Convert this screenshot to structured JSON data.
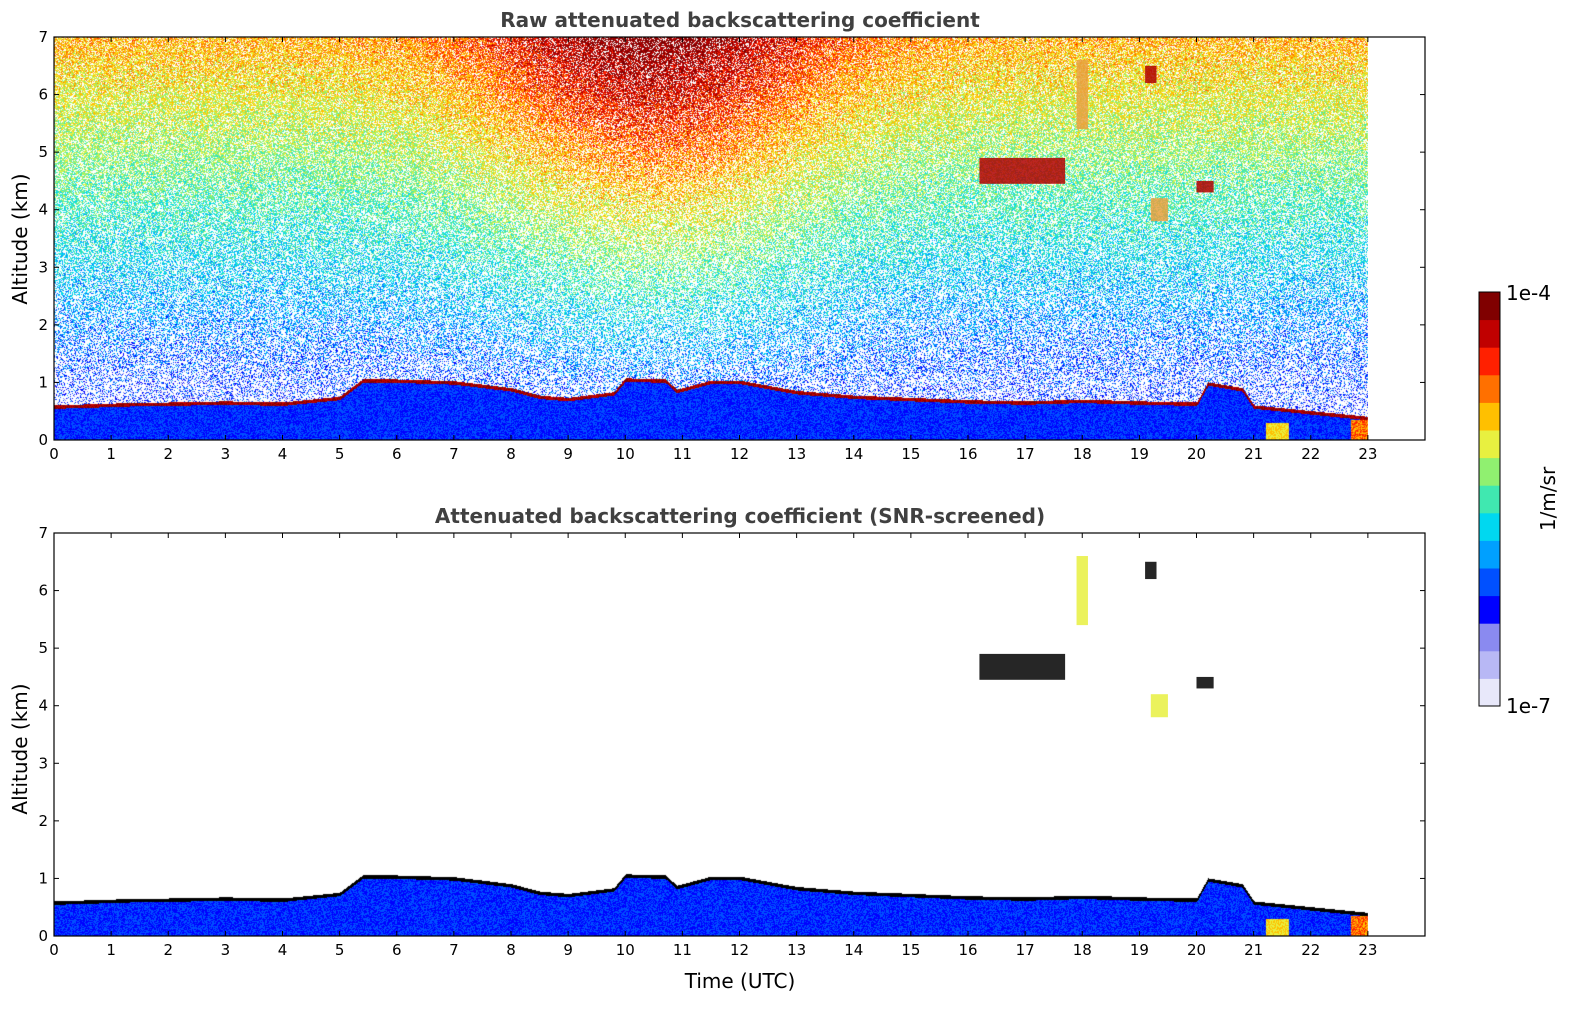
{
  "chart_data": [
    {
      "type": "heatmap",
      "title": "Raw attenuated backscattering coefficient",
      "xlabel": "",
      "ylabel": "Altitude (km)",
      "xlim": [
        0,
        24
      ],
      "ylim": [
        0,
        7
      ],
      "x_ticks": [
        "0",
        "1",
        "2",
        "3",
        "4",
        "5",
        "6",
        "7",
        "8",
        "9",
        "10",
        "11",
        "12",
        "13",
        "14",
        "15",
        "16",
        "17",
        "18",
        "19",
        "20",
        "21",
        "22",
        "23"
      ],
      "y_ticks": [
        "0",
        "1",
        "2",
        "3",
        "4",
        "5",
        "6",
        "7"
      ],
      "data_end_hour": 23,
      "noise": "random speckle increasing with altitude, strongest (orange) near 10-11 UTC above 5 km",
      "boundary_layer_top_km": [
        [
          0,
          0.55
        ],
        [
          1,
          0.58
        ],
        [
          1.6,
          0.6
        ],
        [
          2,
          0.6
        ],
        [
          3,
          0.62
        ],
        [
          4,
          0.6
        ],
        [
          5,
          0.7
        ],
        [
          5.4,
          1.0
        ],
        [
          6,
          1.0
        ],
        [
          7,
          0.97
        ],
        [
          8,
          0.85
        ],
        [
          8.5,
          0.72
        ],
        [
          9,
          0.68
        ],
        [
          9.8,
          0.78
        ],
        [
          10,
          1.02
        ],
        [
          10.7,
          1.0
        ],
        [
          10.9,
          0.82
        ],
        [
          11.5,
          0.98
        ],
        [
          12,
          0.98
        ],
        [
          13,
          0.8
        ],
        [
          14,
          0.72
        ],
        [
          15,
          0.68
        ],
        [
          16,
          0.64
        ],
        [
          17,
          0.62
        ],
        [
          18,
          0.65
        ],
        [
          19,
          0.62
        ],
        [
          20,
          0.6
        ],
        [
          20.2,
          0.95
        ],
        [
          20.8,
          0.85
        ],
        [
          21,
          0.55
        ],
        [
          22,
          0.45
        ],
        [
          23,
          0.35
        ]
      ],
      "cloud_features": [
        {
          "x_range": [
            16.2,
            17.7
          ],
          "alt_km": [
            4.45,
            4.9
          ],
          "intensity": "high"
        },
        {
          "x_range": [
            19.1,
            19.3
          ],
          "alt_km": [
            6.2,
            6.5
          ],
          "intensity": "high"
        },
        {
          "x_range": [
            17.9,
            18.1
          ],
          "alt_km": [
            5.4,
            6.6
          ],
          "intensity": "medium"
        },
        {
          "x_range": [
            20.0,
            20.3
          ],
          "alt_km": [
            4.3,
            4.5
          ],
          "intensity": "high"
        },
        {
          "x_range": [
            19.2,
            19.5
          ],
          "alt_km": [
            3.8,
            4.2
          ],
          "intensity": "medium"
        }
      ]
    },
    {
      "type": "heatmap",
      "title": "Attenuated backscattering coefficient (SNR-screened)",
      "xlabel": "Time (UTC)",
      "ylabel": "Altitude (km)",
      "xlim": [
        0,
        24
      ],
      "ylim": [
        0,
        7
      ],
      "x_ticks": [
        "0",
        "1",
        "2",
        "3",
        "4",
        "5",
        "6",
        "7",
        "8",
        "9",
        "10",
        "11",
        "12",
        "13",
        "14",
        "15",
        "16",
        "17",
        "18",
        "19",
        "20",
        "21",
        "22",
        "23"
      ],
      "y_ticks": [
        "0",
        "1",
        "2",
        "3",
        "4",
        "5",
        "6",
        "7"
      ],
      "data_end_hour": 23,
      "screened": true
    }
  ],
  "colorbar": {
    "label": "1/m/sr",
    "max_label": "1e-4",
    "min_label": "1e-7",
    "colormap": "jet",
    "colors": [
      "#e8e8fa",
      "#b8b8f5",
      "#8a8af0",
      "#0000ff",
      "#0050ff",
      "#00a0ff",
      "#00d8f0",
      "#40e8b0",
      "#90f070",
      "#e8f040",
      "#ffc000",
      "#ff7000",
      "#ff2000",
      "#c00000",
      "#800000"
    ]
  }
}
